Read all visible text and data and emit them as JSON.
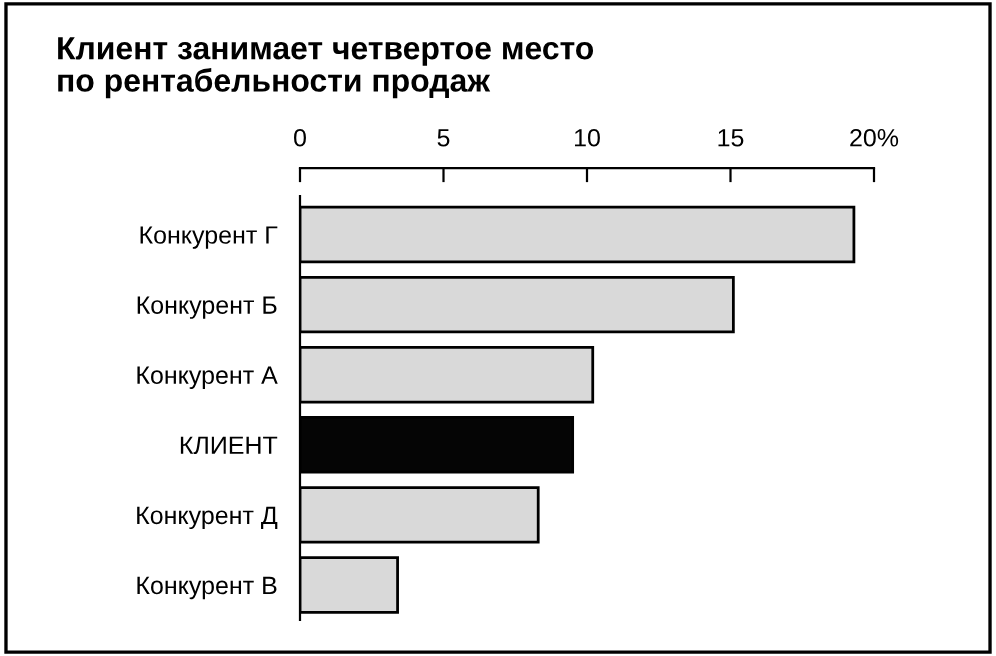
{
  "chart_data": {
    "type": "bar",
    "orientation": "horizontal",
    "title": "Клиент занимает четвертое место\nпо рентабельности продаж",
    "categories": [
      "Конкурент Г",
      "Конкурент Б",
      "Конкурент А",
      "КЛИЕНТ",
      "Конкурент Д",
      "Конкурент В"
    ],
    "values": [
      19.3,
      15.1,
      10.2,
      9.5,
      8.3,
      3.4
    ],
    "colors": [
      "#d9d9d9",
      "#d9d9d9",
      "#d9d9d9",
      "#050505",
      "#d9d9d9",
      "#d9d9d9"
    ],
    "xlim": [
      0,
      20
    ],
    "xticks": [
      0,
      5,
      10,
      15,
      {
        "value": 20,
        "label": "20%"
      }
    ],
    "grid": false,
    "legend": false
  }
}
